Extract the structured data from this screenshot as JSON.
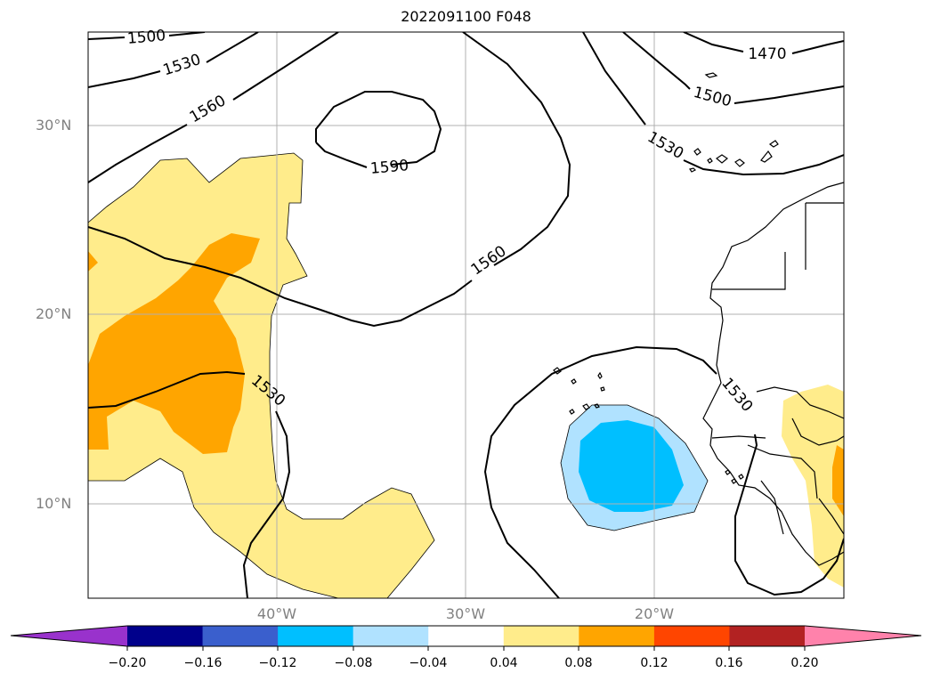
{
  "title": "2022091100 F048",
  "contour_labels": [
    "1500",
    "1530",
    "1560",
    "1590",
    "1560",
    "1530",
    "1470",
    "1500",
    "1530",
    "1530"
  ],
  "lat_labels": [
    "30°N",
    "20°N",
    "10°N"
  ],
  "lon_labels": [
    "40°W",
    "30°W",
    "20°W"
  ],
  "colorbar": {
    "colors": [
      "#9932cc",
      "#00008b",
      "#3a5fcd",
      "#00bfff",
      "#b0e2ff",
      "#ffffff",
      "#ffec8b",
      "#ffa500",
      "#ff4500",
      "#b22222",
      "#ff82ab"
    ],
    "ticks": [
      "−0.20",
      "−0.16",
      "−0.12",
      "−0.08",
      "−0.04",
      "0.04",
      "0.08",
      "0.12",
      "0.16",
      "0.20"
    ]
  },
  "shading_colors": {
    "light_yellow": "#ffec8b",
    "orange": "#ffa500",
    "light_blue": "#b0e2ff",
    "deep_sky_blue": "#00bfff"
  }
}
